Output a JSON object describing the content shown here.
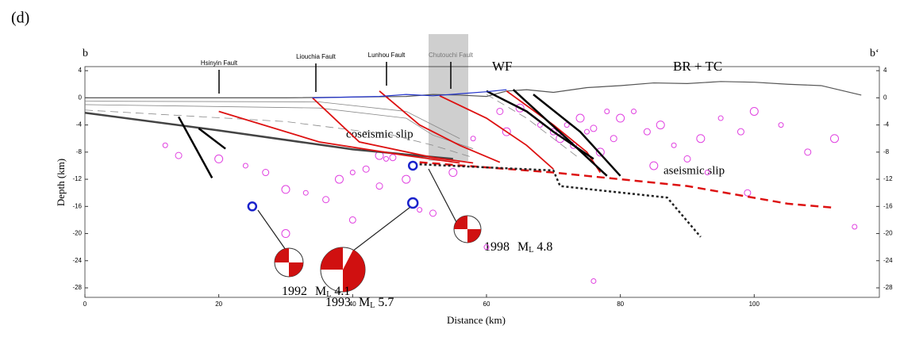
{
  "panel_label": "(d)",
  "chart_data": {
    "type": "section",
    "left_label": "b",
    "right_label": "b‘",
    "x_label": "Distance (km)",
    "y_label": "Depth (km)",
    "xlim": [
      0,
      118.7
    ],
    "ylim": [
      -29.4,
      4.6
    ],
    "xticks": [
      0,
      20,
      40,
      60,
      80,
      100
    ],
    "yticks": [
      4,
      0,
      -4,
      -8,
      -12,
      -16,
      -20,
      -24,
      -28
    ],
    "faults": [
      "Hsinyin Fault",
      "Liouchia Fault",
      "Lunhou Fault",
      "Chutouchi Fault"
    ],
    "annotations": [
      "WF",
      "BR + TC",
      "coseismic slip",
      "aseismic slip"
    ],
    "lines": [
      {
        "color": "#555555",
        "width": 1.2,
        "dash": "solid",
        "x": [
          0,
          30,
          48,
          52,
          56,
          60,
          63,
          66,
          70,
          75,
          80,
          85,
          90,
          95,
          100,
          105,
          110,
          116
        ],
        "y": [
          0,
          0,
          0.2,
          0.5,
          0.4,
          0.2,
          1,
          1.2,
          0.8,
          1.5,
          1.8,
          2.2,
          2.1,
          2.4,
          2.3,
          2,
          1.8,
          0.4
        ]
      },
      {
        "color": "#888888",
        "width": 0.8,
        "dash": "solid",
        "x": [
          0,
          35,
          48,
          52,
          56
        ],
        "y": [
          -0.5,
          -0.6,
          -2,
          -4,
          -6
        ]
      },
      {
        "color": "#888888",
        "width": 0.8,
        "dash": "solid",
        "x": [
          0,
          35,
          48,
          52,
          58
        ],
        "y": [
          -1,
          -1.5,
          -3,
          -5.5,
          -7.5
        ]
      },
      {
        "color": "#888888",
        "width": 0.8,
        "dash": "dashed",
        "x": [
          0,
          30,
          46,
          52,
          58
        ],
        "y": [
          -1.8,
          -3.5,
          -5.5,
          -7,
          -8.8
        ]
      },
      {
        "color": "#888888",
        "width": 0.8,
        "dash": "dashed",
        "x": [
          60,
          66,
          70,
          74
        ],
        "y": [
          0.5,
          -3,
          -6,
          -9
        ]
      },
      {
        "color": "#444444",
        "width": 2.5,
        "dash": "solid",
        "x": [
          0,
          20,
          40,
          55
        ],
        "y": [
          -2.2,
          -4.8,
          -7.6,
          -9
        ]
      },
      {
        "color": "#dd1111",
        "width": 1.8,
        "dash": "solid",
        "x": [
          20,
          35,
          48,
          56
        ],
        "y": [
          -2,
          -6.5,
          -8.5,
          -9.6
        ]
      },
      {
        "color": "#dd1111",
        "width": 1.8,
        "dash": "solid",
        "x": [
          34,
          41,
          52,
          58
        ],
        "y": [
          0,
          -6.5,
          -8.8,
          -9.6
        ]
      },
      {
        "color": "#dd1111",
        "width": 1.8,
        "dash": "solid",
        "x": [
          44,
          50,
          56,
          62
        ],
        "y": [
          1,
          -4,
          -7,
          -9.5
        ]
      },
      {
        "color": "#dd1111",
        "width": 1.8,
        "dash": "solid",
        "x": [
          53,
          60,
          66,
          70
        ],
        "y": [
          0.3,
          -3,
          -7,
          -10.5
        ]
      },
      {
        "color": "#dd1111",
        "width": 1.8,
        "dash": "solid",
        "x": [
          63,
          70,
          75,
          77
        ],
        "y": [
          1,
          -4,
          -8,
          -11
        ]
      },
      {
        "color": "#dd1111",
        "width": 2.5,
        "dash": "dashed",
        "x": [
          50,
          70,
          90,
          105,
          112
        ],
        "y": [
          -9.5,
          -11,
          -13,
          -15.6,
          -16.2
        ]
      },
      {
        "color": "#222222",
        "width": 2.5,
        "dash": "dotted",
        "x": [
          50,
          70,
          71,
          87,
          92
        ],
        "y": [
          -9.8,
          -10.7,
          -13,
          -14.7,
          -20.5
        ]
      },
      {
        "color": "#000000",
        "width": 2.5,
        "dash": "solid",
        "x": [
          14,
          19
        ],
        "y": [
          -2.8,
          -11.8
        ]
      },
      {
        "color": "#000000",
        "width": 2.5,
        "dash": "solid",
        "x": [
          17,
          21
        ],
        "y": [
          -4.5,
          -7.5
        ]
      },
      {
        "color": "#000000",
        "width": 2.5,
        "dash": "solid",
        "x": [
          64,
          72,
          78
        ],
        "y": [
          1.2,
          -6,
          -11.5
        ]
      },
      {
        "color": "#000000",
        "width": 2.5,
        "dash": "solid",
        "x": [
          67,
          74,
          80
        ],
        "y": [
          0.5,
          -5,
          -11.5
        ]
      },
      {
        "color": "#000000",
        "width": 2.5,
        "dash": "solid",
        "x": [
          60,
          66,
          70,
          76
        ],
        "y": [
          1,
          -2,
          -5,
          -9
        ]
      },
      {
        "color": "#2233cc",
        "width": 1.2,
        "dash": "solid",
        "x": [
          34,
          44,
          48,
          52,
          56,
          60,
          63
        ],
        "y": [
          0,
          0.2,
          0.5,
          0.3,
          0.6,
          0.9,
          1.2
        ]
      }
    ],
    "earthquakes": {
      "color": "#e040e0",
      "x": [
        12,
        14,
        20,
        24,
        27,
        30,
        33,
        36,
        38,
        40,
        42,
        44,
        45,
        46,
        48,
        50,
        52,
        55,
        58,
        62,
        65,
        68,
        70,
        71,
        72,
        73,
        74,
        75,
        76,
        77,
        78,
        79,
        80,
        82,
        84,
        86,
        88,
        90,
        92,
        95,
        98,
        100,
        104,
        108,
        112,
        115,
        40,
        30,
        60,
        44,
        85,
        93,
        99,
        63,
        76
      ],
      "y": [
        -7,
        -8.5,
        -9,
        -10,
        -11,
        -13.5,
        -14,
        -15,
        -12,
        -11,
        -10.5,
        -8.5,
        -9,
        -8.8,
        -12,
        -16.5,
        -17,
        -11,
        -6,
        -2,
        -1.5,
        -4,
        -5,
        -6,
        -4,
        -7,
        -3,
        -5,
        -4.5,
        -8,
        -2,
        -6,
        -3,
        -2,
        -5,
        -4,
        -7,
        -9,
        -6,
        -3,
        -5,
        -2,
        -4,
        -8,
        -6,
        -19,
        -18,
        -20,
        -22,
        -13,
        -10,
        -11,
        -14,
        -5,
        -27
      ]
    },
    "events": {
      "color": "#1a22cc",
      "x": [
        25,
        49,
        49
      ],
      "y": [
        -16,
        -15.5,
        -10
      ]
    },
    "event_labels": [
      {
        "year": "1992",
        "m": "M",
        "sub": "L",
        "mag": "4.1"
      },
      {
        "year": "1993",
        "m": "M",
        "sub": "L",
        "mag": "5.7"
      },
      {
        "year": "1998",
        "m": "M",
        "sub": "L",
        "mag": "4.8"
      }
    ]
  }
}
